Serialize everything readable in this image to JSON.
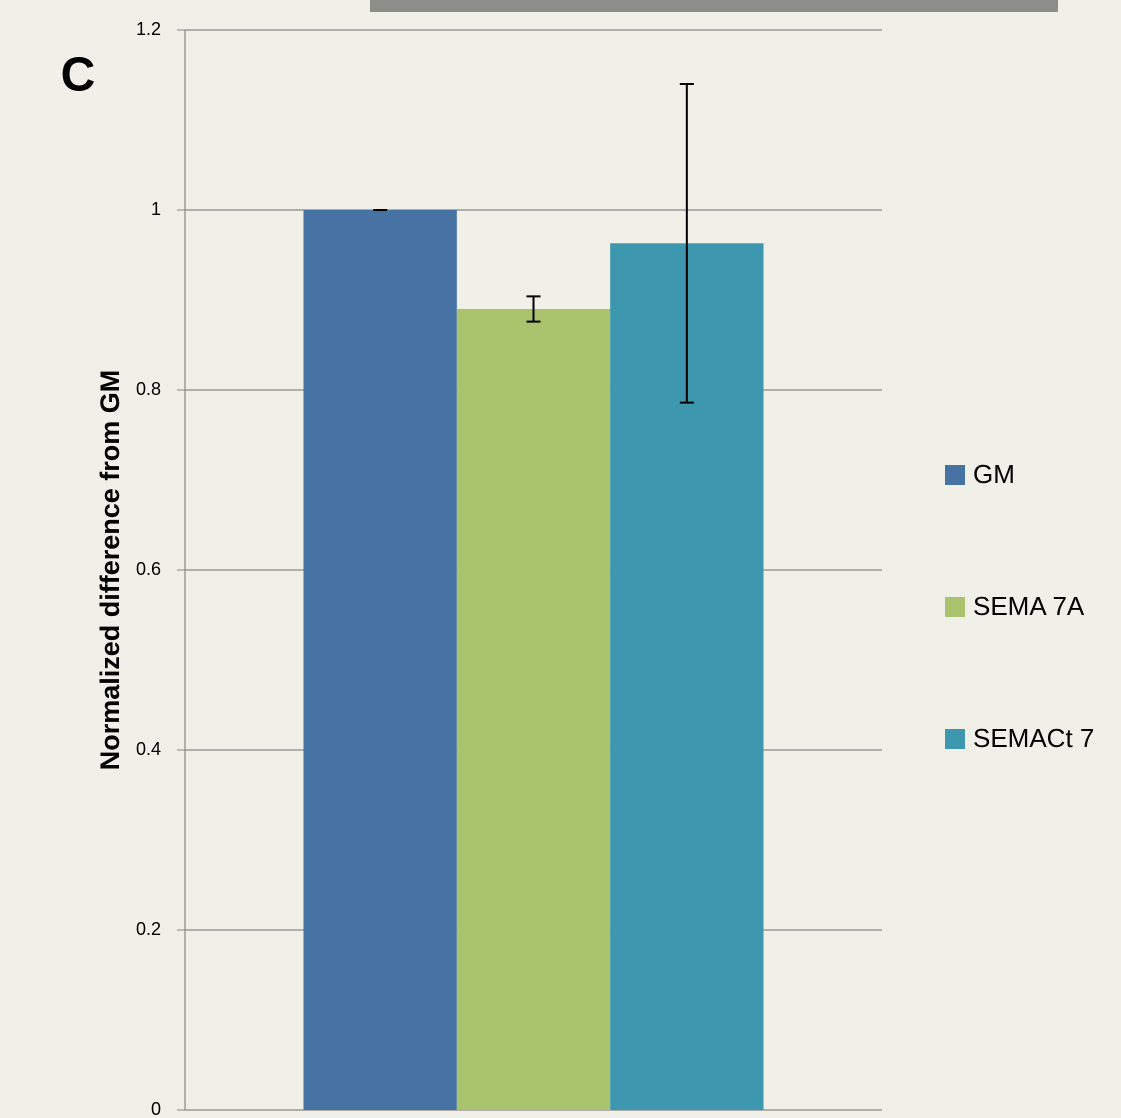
{
  "chart_data": {
    "type": "bar",
    "panel_label": "C",
    "y_label": "Normalized difference from GM",
    "categories": [
      null
    ],
    "series": [
      {
        "name": "GM",
        "color": "#4672a4",
        "values": [
          1.0
        ],
        "errors": [
          0.0
        ]
      },
      {
        "name": "SEMA 7A",
        "color": "#a9c46c",
        "values": [
          0.89
        ],
        "errors": [
          0.014
        ]
      },
      {
        "name": "SEMACt 7",
        "color": "#3d97ae",
        "values": [
          0.963
        ],
        "errors": [
          0.177
        ]
      }
    ],
    "ylim": [
      0,
      1.2
    ],
    "yticks": [
      0,
      0.2,
      0.4,
      0.6,
      0.8,
      1,
      1.2
    ],
    "grid": true,
    "legend": "right"
  }
}
